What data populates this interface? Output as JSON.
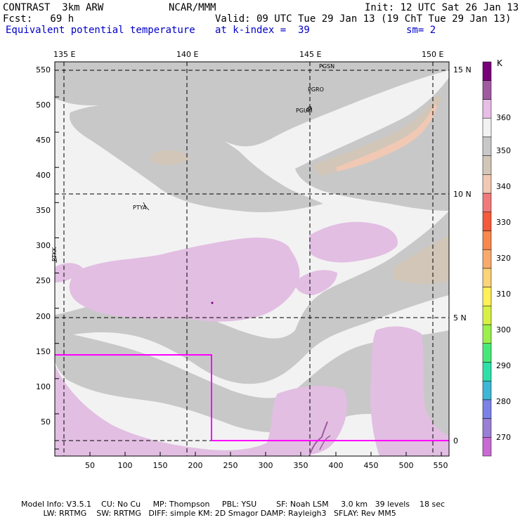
{
  "header": {
    "model": "CONTRAST  3km ARW",
    "org": "NCAR/MMM",
    "init": "Init: 12 UTC Sat 26 Jan 13",
    "fcst": "Fcst:   69 h",
    "valid": "Valid: 09 UTC Tue 29 Jan 13 (19 ChT Tue 29 Jan 13)",
    "field": "Equivalent potential temperature",
    "level": "at k-index =  39",
    "smooth": "sm= 2"
  },
  "axes": {
    "lon_labels": [
      "135 E",
      "140 E",
      "145 E",
      "150 E"
    ],
    "lat_labels": [
      "15 N",
      "10 N",
      "5 N",
      "0"
    ],
    "x_ticks": [
      "50",
      "100",
      "150",
      "200",
      "250",
      "300",
      "350",
      "400",
      "450",
      "500",
      "550"
    ],
    "y_ticks": [
      "550",
      "500",
      "450",
      "400",
      "350",
      "300",
      "250",
      "200",
      "150",
      "100",
      "50"
    ]
  },
  "places": [
    "PGSN",
    "PGRO",
    "PGUM",
    "PTYA",
    "PTKK"
  ],
  "colorbar": {
    "unit": "K",
    "labels": [
      "360",
      "350",
      "340",
      "330",
      "320",
      "310",
      "300",
      "290",
      "280",
      "270"
    ],
    "colors": [
      "#c86ad2",
      "#9a7fd6",
      "#7a82e6",
      "#3fb6d6",
      "#2fdfa8",
      "#48e878",
      "#9af04c",
      "#d8f046",
      "#fff05a",
      "#fcd27a",
      "#f8aa6e",
      "#f8884e",
      "#f45a3c",
      "#f07a7a",
      "#f0c8b4",
      "#d2c6b8",
      "#c8c8c8",
      "#f2f2f2",
      "#e6bee6",
      "#a05aa0",
      "#780078"
    ]
  },
  "footer": {
    "line1": "Model Info: V3.5.1    CU: No Cu     MP: Thompson     PBL: YSU        SF: Noah LSM     3.0 km   39 levels    18 sec",
    "line2": "         LW: RRTMG    SW: RRTMG   DIFF: simple KM: 2D Smagor DAMP: Rayleigh3   SFLAY: Rev MM5"
  },
  "legend_colors": {
    "gray_350": "#c8c8c8",
    "white_360": "#f2f2f2",
    "lilac_365": "#e2bee2",
    "tan_345": "#d2c6b8",
    "peach_340": "#f0c8b4",
    "subdomain_box": "#ff00ff"
  }
}
